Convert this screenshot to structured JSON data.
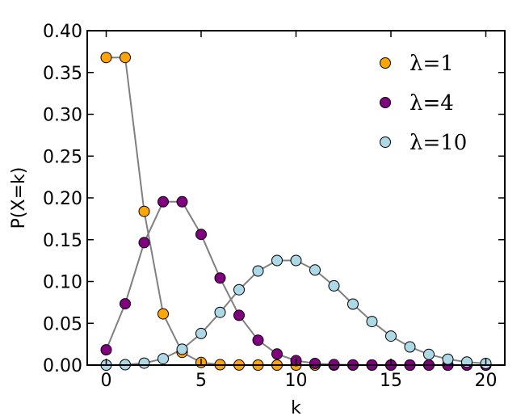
{
  "chart_data": {
    "type": "scatter",
    "title": "",
    "xlabel": "k",
    "ylabel": "P(X=k)",
    "xlim": [
      -1,
      21
    ],
    "ylim": [
      0,
      0.4
    ],
    "xticks": [
      0,
      5,
      10,
      15,
      20
    ],
    "yticks": [
      0.0,
      0.05,
      0.1,
      0.15,
      0.2,
      0.25,
      0.3,
      0.35,
      0.4
    ],
    "xtick_labels": [
      "0",
      "5",
      "10",
      "15",
      "20"
    ],
    "ytick_labels": [
      "0.00",
      "0.05",
      "0.10",
      "0.15",
      "0.20",
      "0.25",
      "0.30",
      "0.35",
      "0.40"
    ],
    "grid": false,
    "legend_position": "top-right",
    "connector_color": "#808080",
    "series": [
      {
        "name": "λ=1",
        "color": "#ffa500",
        "x": [
          0,
          1,
          2,
          3,
          4,
          5,
          6,
          7,
          8,
          9,
          10,
          11,
          12,
          13,
          14,
          15,
          16,
          17,
          18,
          19,
          20
        ],
        "y": [
          0.3679,
          0.3679,
          0.1839,
          0.0613,
          0.0153,
          0.0031,
          0.0005,
          0.0001,
          0.0,
          0.0,
          0.0,
          0.0,
          0.0,
          0.0,
          0.0,
          0.0,
          0.0,
          0.0,
          0.0,
          0.0,
          0.0
        ]
      },
      {
        "name": "λ=4",
        "color": "#800080",
        "x": [
          0,
          1,
          2,
          3,
          4,
          5,
          6,
          7,
          8,
          9,
          10,
          11,
          12,
          13,
          14,
          15,
          16,
          17,
          18,
          19,
          20
        ],
        "y": [
          0.0183,
          0.0733,
          0.1465,
          0.1954,
          0.1954,
          0.1563,
          0.1042,
          0.0595,
          0.0298,
          0.0132,
          0.0053,
          0.0019,
          0.0006,
          0.0002,
          0.0001,
          0.0,
          0.0,
          0.0,
          0.0,
          0.0,
          0.0
        ]
      },
      {
        "name": "λ=10",
        "color": "#add8e6",
        "x": [
          0,
          1,
          2,
          3,
          4,
          5,
          6,
          7,
          8,
          9,
          10,
          11,
          12,
          13,
          14,
          15,
          16,
          17,
          18,
          19,
          20
        ],
        "y": [
          0.0,
          0.0005,
          0.0023,
          0.0076,
          0.0189,
          0.0378,
          0.0631,
          0.0901,
          0.1126,
          0.1251,
          0.1251,
          0.1137,
          0.0948,
          0.0729,
          0.0521,
          0.0347,
          0.0217,
          0.0128,
          0.0071,
          0.0037,
          0.0019
        ]
      }
    ]
  }
}
